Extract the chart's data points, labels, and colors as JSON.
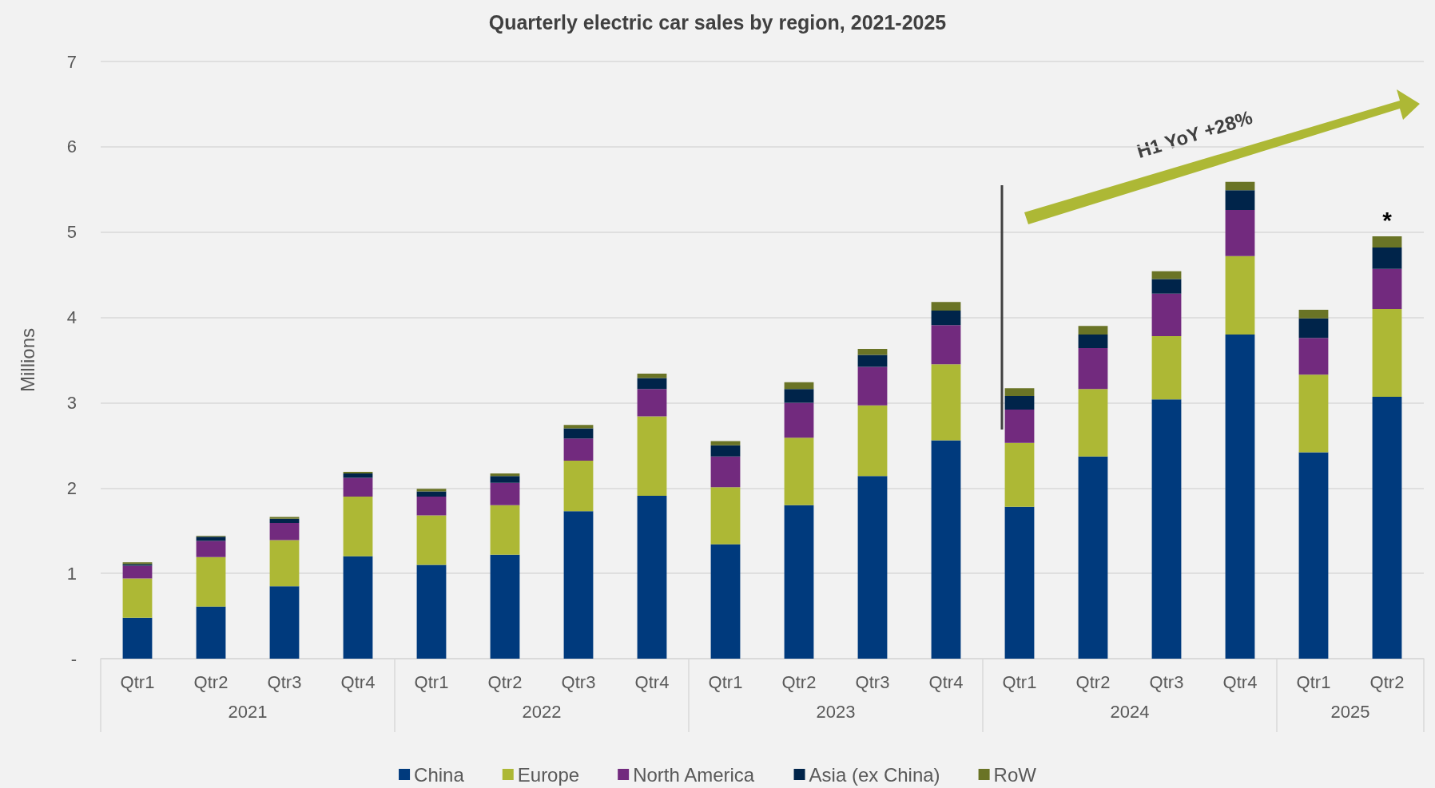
{
  "chart_data": {
    "type": "bar",
    "stacked": true,
    "title": "Quarterly electric car sales by region, 2021-2025",
    "ylabel": "Millions",
    "categories": [
      "Qtr1",
      "Qtr2",
      "Qtr3",
      "Qtr4",
      "Qtr1",
      "Qtr2",
      "Qtr3",
      "Qtr4",
      "Qtr1",
      "Qtr2",
      "Qtr3",
      "Qtr4",
      "Qtr1",
      "Qtr2",
      "Qtr3",
      "Qtr4",
      "Qtr1",
      "Qtr2"
    ],
    "series": [
      {
        "name": "China",
        "color": "#003a7d",
        "values": [
          0.48,
          0.61,
          0.85,
          1.2,
          1.1,
          1.22,
          1.73,
          1.91,
          1.34,
          1.8,
          2.14,
          2.56,
          1.78,
          2.37,
          3.04,
          3.8,
          2.42,
          3.07
        ]
      },
      {
        "name": "Europe",
        "color": "#adb835",
        "values": [
          0.46,
          0.58,
          0.54,
          0.7,
          0.58,
          0.58,
          0.59,
          0.93,
          0.67,
          0.79,
          0.83,
          0.89,
          0.75,
          0.79,
          0.74,
          0.92,
          0.91,
          1.03
        ]
      },
      {
        "name": "North America",
        "color": "#722a7e",
        "values": [
          0.15,
          0.19,
          0.2,
          0.22,
          0.22,
          0.26,
          0.26,
          0.32,
          0.36,
          0.41,
          0.45,
          0.46,
          0.39,
          0.48,
          0.5,
          0.54,
          0.43,
          0.47
        ]
      },
      {
        "name": "Asia (ex China)",
        "color": "#00244a",
        "values": [
          0.02,
          0.05,
          0.05,
          0.05,
          0.06,
          0.08,
          0.12,
          0.13,
          0.13,
          0.16,
          0.14,
          0.17,
          0.16,
          0.16,
          0.17,
          0.23,
          0.23,
          0.25
        ]
      },
      {
        "name": "RoW",
        "color": "#6a7426",
        "values": [
          0.02,
          0.01,
          0.02,
          0.02,
          0.03,
          0.03,
          0.04,
          0.05,
          0.05,
          0.08,
          0.07,
          0.1,
          0.09,
          0.1,
          0.09,
          0.1,
          0.1,
          0.13
        ]
      }
    ],
    "ylim": [
      0,
      7
    ],
    "yticks": [
      {
        "value": 0,
        "label": "-"
      },
      1,
      2,
      3,
      4,
      5,
      6,
      7
    ],
    "grid": "y",
    "legend": "bottom",
    "annotations": [
      "H1 YoY +28%",
      "*",
      "2021",
      "2022",
      "2023",
      "2024",
      "2025"
    ]
  }
}
